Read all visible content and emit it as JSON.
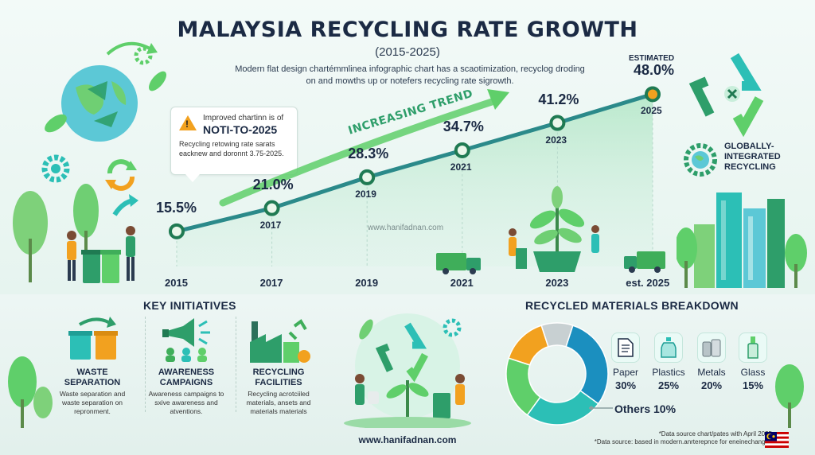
{
  "header": {
    "title": "MALAYSIA RECYCLING RATE GROWTH",
    "subtitle": "(2015-2025)",
    "description": "Modern flat design chartémmlinea infographic chart has a scaotimization, recyclog droding on and mowths up or notefers recycling rate sigrowth."
  },
  "callout": {
    "line1": "Improved chartinn is of",
    "line2": "NOTI-TO-2025",
    "line3": "Recycling retowing rate sarats eacknew and doronnt 3.75-2025."
  },
  "trend_label": "INCREASING TREND",
  "watermark": "www.hanifadnan.com",
  "estimated_label": "ESTIMATED",
  "globally_label": "GLOBALLY-INTEGRATED RECYCLING",
  "chart_data": {
    "type": "line",
    "title": "MALAYSIA RECYCLING RATE GROWTH",
    "subtitle": "(2015-2025)",
    "x": [
      "2015",
      "2017",
      "2019",
      "2021",
      "2023",
      "est. 2025"
    ],
    "series": [
      {
        "values": [
          15.5,
          21.0,
          28.3,
          34.7,
          41.2,
          48.0
        ],
        "labels": [
          "15.5%",
          "21.0%",
          "28.3%",
          "34.7%",
          "41.2%",
          "48.0%"
        ],
        "point_years": [
          "",
          "2017",
          "2019",
          "2021",
          "2023",
          "2025"
        ]
      }
    ],
    "unit": "%",
    "grid": false,
    "legend": "none"
  },
  "initiatives": {
    "title": "KEY INITIATIVES",
    "items": [
      {
        "title": "WASTE SEPARATION",
        "desc": "Waste separation and waste separation on repronment."
      },
      {
        "title": "AWARENESS CAMPAIGNS",
        "desc": "Awareness campaigns to sxive awareness and atventions."
      },
      {
        "title": "RECYCLING FACILITIES",
        "desc": "Recycling acrotciiled materials, ansets and materials materials"
      }
    ]
  },
  "materials": {
    "title": "RECYCLED MATERIALS BREAKDOWN",
    "chart_data": {
      "type": "pie",
      "slices": [
        {
          "name": "Paper",
          "value": 30,
          "label": "30%",
          "color": "#1b8fbf"
        },
        {
          "name": "Plastics",
          "value": 25,
          "label": "25%",
          "color": "#2cbfb6"
        },
        {
          "name": "Metals",
          "value": 20,
          "label": "20%",
          "color": "#5fcf6a"
        },
        {
          "name": "Glass",
          "value": 15,
          "label": "15%",
          "color": "#f2a11f"
        },
        {
          "name": "Others",
          "value": 10,
          "label": "10%",
          "color": "#c8d0d2"
        }
      ]
    },
    "others_label": "Others 10%"
  },
  "footer": {
    "site": "www.hanifadnan.com",
    "note1": "*Data source chart/pates with April 2025",
    "note2": "*Data source: based in modern.anrterepnce for eneinechanges"
  },
  "colors": {
    "accent_green": "#2e9e6a",
    "line_teal": "#2b8a8a",
    "navy": "#1b2a44"
  }
}
